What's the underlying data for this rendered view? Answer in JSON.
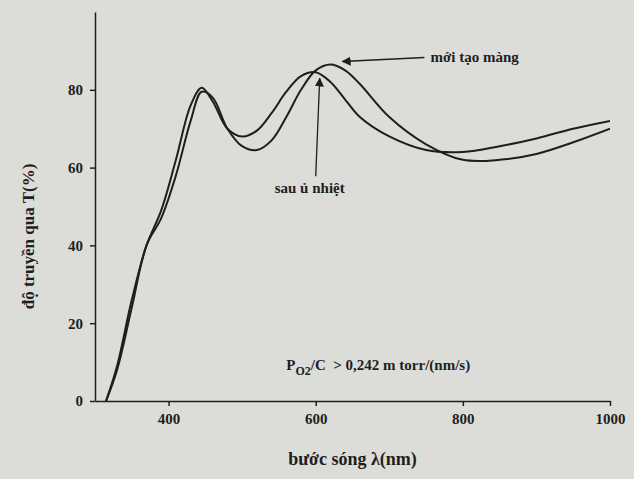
{
  "chart_data": {
    "type": "line",
    "x_label": "bước sóng λ(nm)",
    "y_label": "độ truyền qua T(%)",
    "x": [
      315,
      330,
      350,
      370,
      390,
      410,
      430,
      445,
      460,
      480,
      500,
      520,
      540,
      560,
      580,
      600,
      620,
      640,
      660,
      700,
      750,
      800,
      850,
      900,
      950,
      1000
    ],
    "series": [
      {
        "name": "mới tạo màng",
        "color": "#1e1e1e",
        "values": [
          0,
          8,
          24,
          40,
          47,
          58,
          72,
          79.5,
          78,
          70,
          65.5,
          64.5,
          67,
          73,
          80,
          85,
          86.5,
          85,
          81.5,
          73,
          66,
          62,
          62,
          63.5,
          66.5,
          70
        ]
      },
      {
        "name": "sau ủ nhiệt",
        "color": "#1e1e1e",
        "values": [
          0,
          9,
          26,
          40,
          49,
          62,
          76,
          80.5,
          77,
          70,
          68,
          69.5,
          74,
          79.5,
          83.5,
          84.5,
          82,
          77.5,
          73,
          68,
          64.5,
          64,
          65.5,
          67.5,
          70,
          72
        ]
      }
    ],
    "xlim": [
      300,
      1000
    ],
    "xticks": [
      400,
      600,
      800,
      1000
    ],
    "ylim": [
      0,
      100
    ],
    "yticks": [
      0,
      20,
      40,
      60,
      80
    ],
    "grid": false,
    "condition": {
      "base": "P",
      "subscript": "O2",
      "rest": "/C  > 0,242 m torr/(nm/s)"
    }
  }
}
